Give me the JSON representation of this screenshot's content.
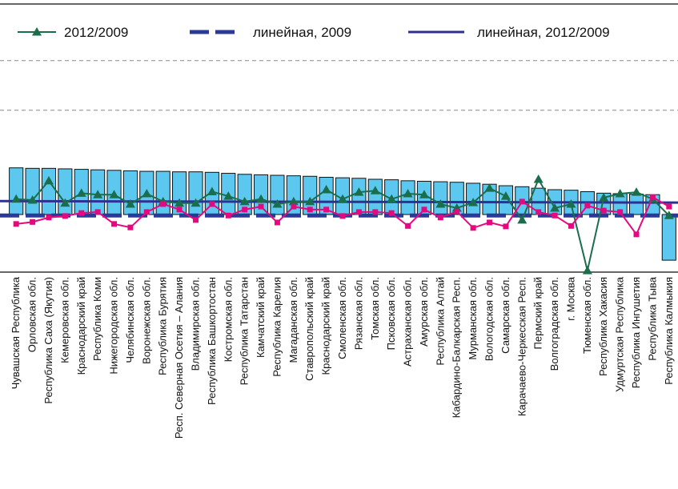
{
  "chart_data": {
    "type": "bar",
    "categories": [
      "Чувашская Республика",
      "Орловская обл.",
      "Республика Саха (Якутия)",
      "Кемеровская обл.",
      "Краснодарский край",
      "Республика Коми",
      "Нижегородская обл.",
      "Челябинская обл.",
      "Воронежская обл.",
      "Республика Бурятия",
      "Респ. Северная Осетия – Алания",
      "Владимирская обл.",
      "Республика Башкортостан",
      "Костромская обл.",
      "Республика Татарстан",
      "Камчатский край",
      "Республика Карелия",
      "Магаданская обл.",
      "Ставропольский край",
      "Краснодарский край",
      "Смоленская обл.",
      "Рязанская обл.",
      "Томская обл.",
      "Псковская обл.",
      "Астраханская обл.",
      "Амурская обл.",
      "Республика Алтай",
      "Кабардино-Балкарская Респ.",
      "Мурманская обл.",
      "Вологодская обл.",
      "Самарская обл.",
      "Карачаево-Черкесская Респ.",
      "Пермский край",
      "Волгоградская обл.",
      "г. Москва",
      "Тюменская обл.",
      "Республика Хакасия",
      "Удмуртская Республика",
      "Республика Ингушетия",
      "Республика Тыва",
      "Республика Калмыкия"
    ],
    "values": [
      0.94,
      0.93,
      0.93,
      0.92,
      0.91,
      0.9,
      0.89,
      0.88,
      0.87,
      0.87,
      0.86,
      0.86,
      0.85,
      0.83,
      0.81,
      0.8,
      0.79,
      0.78,
      0.77,
      0.75,
      0.74,
      0.73,
      0.71,
      0.7,
      0.68,
      0.67,
      0.66,
      0.65,
      0.63,
      0.61,
      0.58,
      0.56,
      0.53,
      0.5,
      0.49,
      0.46,
      0.43,
      0.42,
      0.41,
      0.4,
      -0.92
    ],
    "color": "#5cc8f0",
    "series": [
      {
        "name": "2012/2009",
        "color": "#1b6e4c",
        "values": [
          0.31,
          0.29,
          0.68,
          0.23,
          0.43,
          0.4,
          0.4,
          0.21,
          0.42,
          0.26,
          0.23,
          0.23,
          0.46,
          0.37,
          0.26,
          0.31,
          0.21,
          0.26,
          0.26,
          0.5,
          0.31,
          0.45,
          0.48,
          0.31,
          0.42,
          0.4,
          0.21,
          0.13,
          0.24,
          0.53,
          0.37,
          -0.11,
          0.71,
          0.13,
          0.21,
          -1.13,
          0.34,
          0.42,
          0.45,
          0.31,
          -0.02
        ]
      },
      {
        "color": "#e5097f",
        "values": [
          -0.19,
          -0.15,
          -0.06,
          -0.03,
          0.03,
          0.05,
          -0.19,
          -0.26,
          0.05,
          0.21,
          0.1,
          -0.11,
          0.21,
          -0.02,
          0.1,
          0.16,
          -0.16,
          0.16,
          0.1,
          0.1,
          -0.03,
          0.05,
          0.05,
          0.03,
          -0.23,
          0.1,
          -0.06,
          0.06,
          -0.27,
          -0.16,
          -0.24,
          0.26,
          0.05,
          -0.02,
          -0.23,
          0.18,
          0.08,
          0.05,
          -0.4,
          0.35,
          0.16
        ]
      }
    ],
    "trendlines": [
      {
        "name": "линейная, 2009",
        "color": "#2b3a98",
        "dashed": true,
        "values": [
          -0.02,
          -0.02
        ]
      },
      {
        "name": "линейная, 2012/2009",
        "color": "#2e3192",
        "dashed": false,
        "values": [
          0.27,
          0.24
        ]
      }
    ],
    "ylim": [
      -1.16,
      4.24
    ],
    "gridlines": [
      2.1,
      3.1
    ]
  }
}
